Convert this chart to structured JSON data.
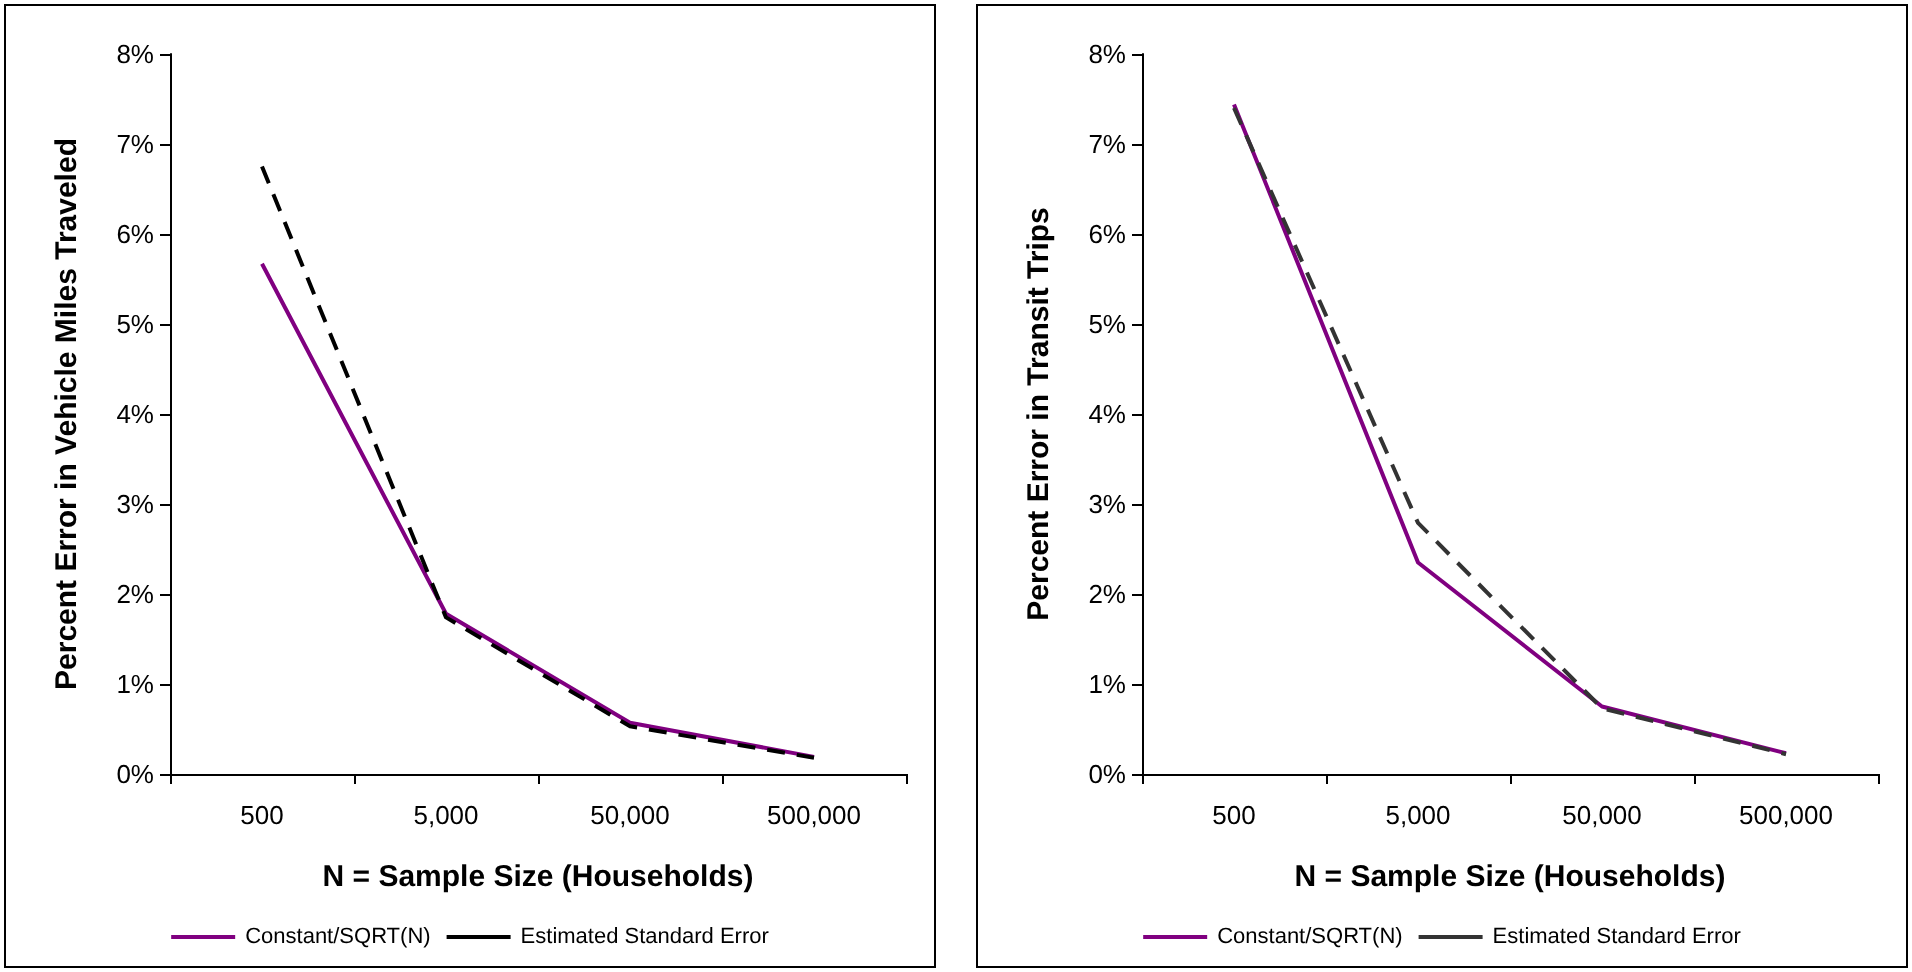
{
  "chart_data": [
    {
      "type": "line",
      "xlabel": "N = Sample Size (Households)",
      "ylabel": "Percent Error in Vehicle Miles Traveled",
      "categories": [
        "500",
        "5,000",
        "50,000",
        "500,000"
      ],
      "series": [
        {
          "name": "Constant/SQRT(N)",
          "color": "#800080",
          "values": [
            5.67,
            1.78,
            0.57,
            0.19
          ],
          "line_style": "solid"
        },
        {
          "name": "Estimated Standard Error",
          "color": "#000000",
          "values": [
            6.75,
            1.74,
            0.53,
            0.18
          ],
          "line_style": "dashed"
        }
      ],
      "ylim": [
        0,
        8
      ],
      "yticks": [
        {
          "value": 0,
          "label": "0%"
        },
        {
          "value": 1,
          "label": "1%"
        },
        {
          "value": 2,
          "label": "2%"
        },
        {
          "value": 3,
          "label": "3%"
        },
        {
          "value": 4,
          "label": "4%"
        },
        {
          "value": 5,
          "label": "5%"
        },
        {
          "value": 6,
          "label": "6%"
        },
        {
          "value": 7,
          "label": "7%"
        },
        {
          "value": 8,
          "label": "8%"
        }
      ],
      "grid": false,
      "legend": "bottom",
      "marker": "none"
    },
    {
      "type": "line",
      "xlabel": "N = Sample Size (Households)",
      "ylabel": "Percent Error in Transit Trips",
      "categories": [
        "500",
        "5,000",
        "50,000",
        "500,000"
      ],
      "series": [
        {
          "name": "Constant/SQRT(N)",
          "color": "#800080",
          "values": [
            7.44,
            2.35,
            0.75,
            0.23
          ],
          "line_style": "solid"
        },
        {
          "name": "Estimated Standard Error",
          "color": "#333333",
          "values": [
            7.4,
            2.79,
            0.73,
            0.22
          ],
          "line_style": "dashed"
        }
      ],
      "ylim": [
        0,
        8
      ],
      "yticks": [
        {
          "value": 0,
          "label": "0%"
        },
        {
          "value": 1,
          "label": "1%"
        },
        {
          "value": 2,
          "label": "2%"
        },
        {
          "value": 3,
          "label": "3%"
        },
        {
          "value": 4,
          "label": "4%"
        },
        {
          "value": 5,
          "label": "5%"
        },
        {
          "value": 6,
          "label": "6%"
        },
        {
          "value": 7,
          "label": "7%"
        },
        {
          "value": 8,
          "label": "8%"
        }
      ],
      "grid": false,
      "legend": "bottom",
      "marker": "none"
    }
  ]
}
